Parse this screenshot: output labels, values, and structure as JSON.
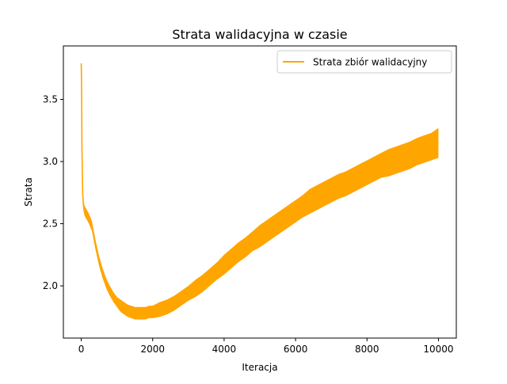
{
  "chart_data": {
    "type": "line",
    "title": "Strata walidacyjna w czasie",
    "xlabel": "Iteracja",
    "ylabel": "Strata",
    "xlim": [
      -500,
      10500
    ],
    "ylim": [
      1.58,
      3.93
    ],
    "x_ticks": [
      0,
      2000,
      4000,
      6000,
      8000,
      10000
    ],
    "x_tick_labels": [
      "0",
      "2000",
      "4000",
      "6000",
      "8000",
      "10000"
    ],
    "y_ticks": [
      2.0,
      2.5,
      3.0,
      3.5
    ],
    "y_tick_labels": [
      "2.0",
      "2.5",
      "3.0",
      "3.5"
    ],
    "grid": false,
    "legend_position": "upper right",
    "series": [
      {
        "name": "Strata zbiór walidacyjny",
        "color": "#FFA500",
        "x": [
          0,
          10,
          20,
          40,
          60,
          80,
          100,
          200,
          300,
          400,
          500,
          600,
          700,
          800,
          900,
          1000,
          1100,
          1200,
          1300,
          1400,
          1500,
          1600,
          1700,
          1800,
          1900,
          2000,
          2200,
          2400,
          2600,
          2800,
          3000,
          3200,
          3400,
          3600,
          3800,
          4000,
          4200,
          4400,
          4600,
          4800,
          5000,
          5200,
          5400,
          5600,
          5800,
          6000,
          6200,
          6400,
          6600,
          6800,
          7000,
          7200,
          7400,
          7600,
          7800,
          8000,
          8200,
          8400,
          8600,
          8800,
          9000,
          9200,
          9400,
          9600,
          9800,
          10000
        ],
        "y": [
          3.79,
          3.6,
          3.1,
          2.75,
          2.65,
          2.62,
          2.6,
          2.55,
          2.48,
          2.33,
          2.2,
          2.1,
          2.02,
          1.96,
          1.91,
          1.87,
          1.84,
          1.82,
          1.8,
          1.79,
          1.78,
          1.78,
          1.78,
          1.78,
          1.79,
          1.79,
          1.81,
          1.83,
          1.86,
          1.9,
          1.94,
          1.98,
          2.02,
          2.07,
          2.12,
          2.17,
          2.22,
          2.27,
          2.31,
          2.36,
          2.4,
          2.44,
          2.48,
          2.52,
          2.56,
          2.6,
          2.64,
          2.68,
          2.71,
          2.74,
          2.77,
          2.8,
          2.82,
          2.85,
          2.88,
          2.91,
          2.94,
          2.97,
          2.99,
          3.01,
          3.03,
          3.05,
          3.08,
          3.1,
          3.12,
          3.15
        ],
        "noise_band": [
          0,
          0,
          0.05,
          0.04,
          0.04,
          0.04,
          0.04,
          0.04,
          0.04,
          0.04,
          0.04,
          0.04,
          0.04,
          0.04,
          0.04,
          0.04,
          0.05,
          0.05,
          0.05,
          0.05,
          0.05,
          0.05,
          0.05,
          0.05,
          0.05,
          0.05,
          0.06,
          0.06,
          0.06,
          0.06,
          0.06,
          0.07,
          0.07,
          0.07,
          0.07,
          0.08,
          0.08,
          0.08,
          0.08,
          0.08,
          0.09,
          0.09,
          0.09,
          0.09,
          0.09,
          0.09,
          0.09,
          0.1,
          0.1,
          0.1,
          0.1,
          0.1,
          0.1,
          0.1,
          0.1,
          0.1,
          0.1,
          0.1,
          0.11,
          0.11,
          0.11,
          0.11,
          0.11,
          0.11,
          0.11,
          0.12
        ]
      }
    ]
  }
}
